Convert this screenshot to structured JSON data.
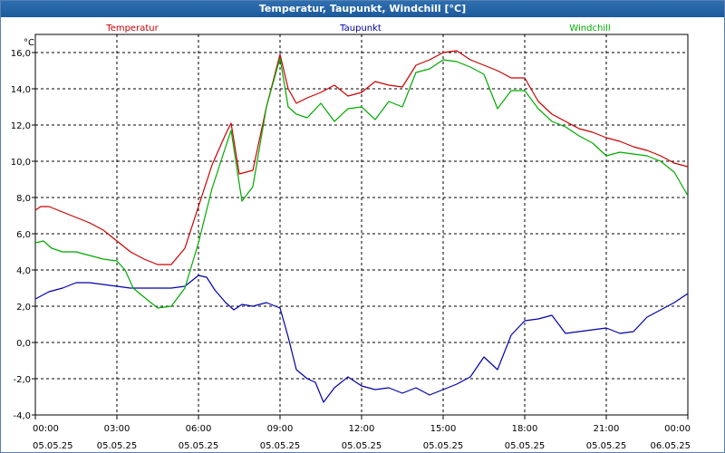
{
  "window": {
    "title": "Temperatur, Taupunkt, Windchill [°C]"
  },
  "chart_data": {
    "type": "line",
    "title": "Temperatur, Taupunkt, Windchill [°C]",
    "ylabel": "°C",
    "ylim": [
      -4.0,
      17.0
    ],
    "yticks": [
      -4.0,
      -2.0,
      0.0,
      2.0,
      4.0,
      6.0,
      8.0,
      10.0,
      12.0,
      14.0,
      16.0
    ],
    "ytick_labels": [
      "-4,0",
      "-2,0",
      "0,0",
      "2,0",
      "4,0",
      "6,0",
      "8,0",
      "10,0",
      "12,0",
      "14,0",
      "16,0"
    ],
    "xlim": [
      0,
      24
    ],
    "xticks": [
      0,
      3,
      6,
      9,
      12,
      15,
      18,
      21,
      24
    ],
    "xtick_labels": [
      [
        "00:00",
        "05.05.25"
      ],
      [
        "03:00",
        "05.05.25"
      ],
      [
        "06:00",
        "05.05.25"
      ],
      [
        "09:00",
        "05.05.25"
      ],
      [
        "12:00",
        "05.05.25"
      ],
      [
        "15:00",
        "05.05.25"
      ],
      [
        "18:00",
        "05.05.25"
      ],
      [
        "21:00",
        "05.05.25"
      ],
      [
        "00:00",
        "06.05.25"
      ]
    ],
    "grid": true,
    "legend_placement": "top",
    "series": [
      {
        "name": "Temperatur",
        "color": "#cc0000",
        "x": [
          0,
          0.2,
          0.5,
          1,
          1.5,
          2,
          2.5,
          3,
          3.5,
          4,
          4.5,
          5,
          5.5,
          6,
          6.5,
          7,
          7.2,
          7.5,
          8,
          8.5,
          9,
          9.3,
          9.6,
          10,
          10.5,
          11,
          11.5,
          12,
          12.5,
          13,
          13.5,
          14,
          14.5,
          15,
          15.5,
          16,
          16.5,
          17,
          17.5,
          18,
          18.5,
          19,
          19.5,
          20,
          20.5,
          21,
          21.5,
          22,
          22.5,
          23,
          23.5,
          24
        ],
        "y": [
          7.3,
          7.5,
          7.5,
          7.2,
          6.9,
          6.6,
          6.2,
          5.6,
          5.0,
          4.6,
          4.3,
          4.3,
          5.2,
          7.5,
          9.8,
          11.5,
          12.1,
          9.3,
          9.5,
          13.0,
          15.9,
          14.0,
          13.2,
          13.5,
          13.8,
          14.2,
          13.6,
          13.8,
          14.4,
          14.2,
          14.1,
          15.3,
          15.6,
          16.0,
          16.1,
          15.6,
          15.3,
          15.0,
          14.6,
          14.6,
          13.3,
          12.6,
          12.2,
          11.8,
          11.6,
          11.3,
          11.1,
          10.8,
          10.6,
          10.3,
          9.9,
          9.7
        ]
      },
      {
        "name": "Taupunkt",
        "color": "#0000aa",
        "x": [
          0,
          0.5,
          1,
          1.5,
          2,
          2.5,
          3,
          3.5,
          4,
          4.5,
          5,
          5.5,
          6,
          6.3,
          6.6,
          7,
          7.3,
          7.6,
          8,
          8.5,
          9,
          9.3,
          9.6,
          10,
          10.3,
          10.6,
          11,
          11.5,
          12,
          12.5,
          13,
          13.5,
          14,
          14.5,
          15,
          15.5,
          16,
          16.5,
          17,
          17.5,
          18,
          18.5,
          19,
          19.5,
          20,
          20.5,
          21,
          21.5,
          22,
          22.5,
          23,
          23.5,
          24
        ],
        "y": [
          2.4,
          2.8,
          3.0,
          3.3,
          3.3,
          3.2,
          3.1,
          3.0,
          3.0,
          3.0,
          3.0,
          3.1,
          3.7,
          3.6,
          2.9,
          2.2,
          1.8,
          2.1,
          2.0,
          2.2,
          1.9,
          0.3,
          -1.5,
          -2.0,
          -2.2,
          -3.3,
          -2.5,
          -1.9,
          -2.4,
          -2.6,
          -2.5,
          -2.8,
          -2.5,
          -2.9,
          -2.6,
          -2.3,
          -1.9,
          -0.8,
          -1.5,
          0.4,
          1.2,
          1.3,
          1.5,
          0.5,
          0.6,
          0.7,
          0.8,
          0.5,
          0.6,
          1.4,
          1.8,
          2.2,
          2.7
        ]
      },
      {
        "name": "Windchill",
        "color": "#00aa00",
        "x": [
          0,
          0.3,
          0.6,
          1,
          1.5,
          2,
          2.5,
          3,
          3.3,
          3.6,
          4,
          4.5,
          5,
          5.5,
          6,
          6.5,
          7,
          7.2,
          7.6,
          8,
          8.5,
          9,
          9.3,
          9.6,
          10,
          10.5,
          11,
          11.5,
          12,
          12.5,
          13,
          13.5,
          14,
          14.5,
          15,
          15.5,
          16,
          16.5,
          17,
          17.5,
          18,
          18.5,
          19,
          19.5,
          20,
          20.5,
          21,
          21.5,
          22,
          22.5,
          23,
          23.5,
          24
        ],
        "y": [
          5.5,
          5.6,
          5.2,
          5.0,
          5.0,
          4.8,
          4.6,
          4.5,
          4.0,
          3.0,
          2.5,
          1.9,
          2.0,
          3.0,
          5.5,
          8.5,
          10.8,
          11.7,
          7.8,
          8.6,
          13.0,
          15.7,
          13.0,
          12.6,
          12.4,
          13.2,
          12.2,
          12.9,
          13.0,
          12.3,
          13.3,
          13.0,
          14.9,
          15.1,
          15.6,
          15.5,
          15.2,
          14.8,
          12.9,
          13.9,
          13.9,
          12.9,
          12.2,
          11.9,
          11.4,
          11.0,
          10.3,
          10.5,
          10.4,
          10.3,
          10.0,
          9.4,
          8.1
        ]
      }
    ]
  }
}
